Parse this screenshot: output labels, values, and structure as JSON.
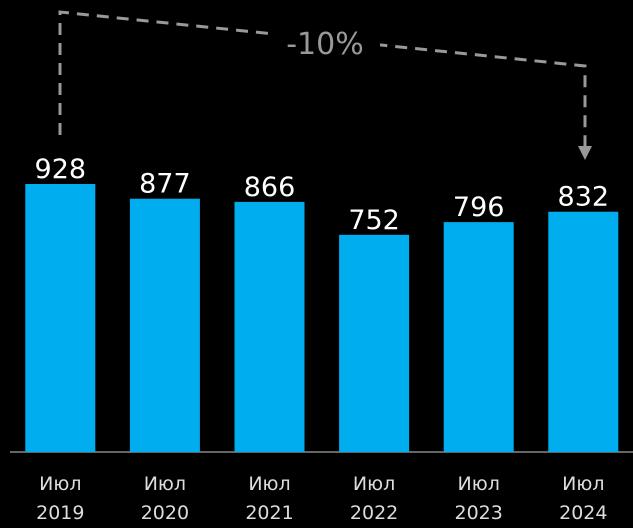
{
  "chart_data": {
    "type": "bar",
    "categories": [
      "Июл 2019",
      "Июл 2020",
      "Июл 2021",
      "Июл 2022",
      "Июл 2023",
      "Июл 2024"
    ],
    "values": [
      928,
      877,
      866,
      752,
      796,
      832
    ],
    "color": "#00aeef",
    "annotation": "-10%"
  }
}
